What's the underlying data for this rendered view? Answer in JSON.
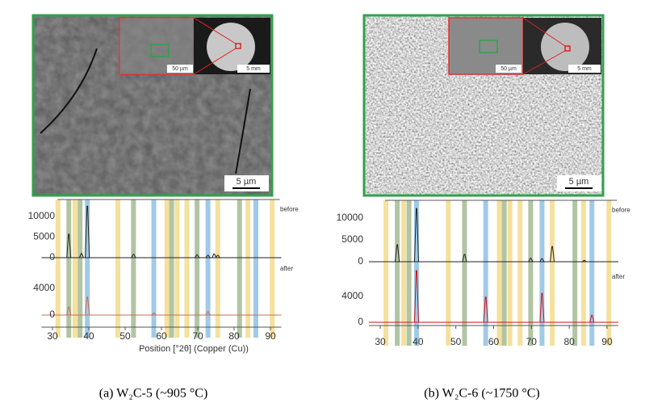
{
  "panels": [
    {
      "caption": "(a) W₂C-5 (~905 °C)",
      "sem": {
        "scale_bar": "5 µm",
        "inset_scale_bar": "50 µm",
        "sample_scale_bar": "5 mm"
      },
      "xrd": {
        "type": "line",
        "xlim": [
          27,
          93
        ],
        "xticks": [
          30,
          40,
          50,
          60,
          70,
          80,
          90
        ],
        "xlabel": "Position [°2θ] (Copper (Cu))",
        "reference_lines": [
          {
            "x": 31.5,
            "color": "#f3dc8c"
          },
          {
            "x": 34.5,
            "color": "#a3bb93"
          },
          {
            "x": 36.2,
            "color": "#f3dc8c"
          },
          {
            "x": 37.6,
            "color": "#a3bb93"
          },
          {
            "x": 39.6,
            "color": "#8fc1e3"
          },
          {
            "x": 48,
            "color": "#f3dc8c"
          },
          {
            "x": 52.3,
            "color": "#a3bb93"
          },
          {
            "x": 57.9,
            "color": "#8fc1e3"
          },
          {
            "x": 61.5,
            "color": "#f3dc8c"
          },
          {
            "x": 62.8,
            "color": "#a3bb93"
          },
          {
            "x": 64.3,
            "color": "#f3dc8c"
          },
          {
            "x": 67,
            "color": "#f3dc8c"
          },
          {
            "x": 69.8,
            "color": "#a3bb93"
          },
          {
            "x": 72.8,
            "color": "#8fc1e3"
          },
          {
            "x": 75.5,
            "color": "#f3dc8c"
          },
          {
            "x": 81.5,
            "color": "#a3bb93"
          },
          {
            "x": 83.8,
            "color": "#f3dc8c"
          },
          {
            "x": 86,
            "color": "#8fc1e3"
          },
          {
            "x": 90.5,
            "color": "#f3dc8c"
          }
        ],
        "series": [
          {
            "name": "before",
            "color": "#222222",
            "ylim": [
              0,
              14000
            ],
            "yticks": [
              0,
              5000,
              10000
            ],
            "x": [
              34.5,
              38,
              39.6,
              52.3,
              69.8,
              72.8,
              74.5,
              75.5
            ],
            "values": [
              5700,
              1000,
              12500,
              800,
              700,
              600,
              900,
              600
            ]
          },
          {
            "name": "after",
            "color": "#c0705a",
            "ylim": [
              0,
              4000
            ],
            "yticks": [
              0,
              4000
            ],
            "x": [
              34.5,
              39.6,
              57.9,
              72.8
            ],
            "values": [
              1200,
              2700,
              300,
              500
            ]
          }
        ]
      }
    },
    {
      "caption": "(b) W₂C-6 (~1750 °C)",
      "sem": {
        "scale_bar": "5 µm",
        "inset_scale_bar": "50 µm",
        "sample_scale_bar": "5 mm"
      },
      "xrd": {
        "type": "line",
        "xlim": [
          27,
          93
        ],
        "xticks": [
          30,
          40,
          50,
          60,
          70,
          80,
          90
        ],
        "reference_lines": [
          {
            "x": 31.5,
            "color": "#f3dc8c"
          },
          {
            "x": 34.5,
            "color": "#a3bb93"
          },
          {
            "x": 36.2,
            "color": "#f3dc8c"
          },
          {
            "x": 37.6,
            "color": "#a3bb93"
          },
          {
            "x": 39.6,
            "color": "#8fc1e3"
          },
          {
            "x": 48,
            "color": "#f3dc8c"
          },
          {
            "x": 52.3,
            "color": "#a3bb93"
          },
          {
            "x": 57.9,
            "color": "#8fc1e3"
          },
          {
            "x": 61.5,
            "color": "#f3dc8c"
          },
          {
            "x": 62.8,
            "color": "#a3bb93"
          },
          {
            "x": 64.3,
            "color": "#f3dc8c"
          },
          {
            "x": 67,
            "color": "#f3dc8c"
          },
          {
            "x": 69.8,
            "color": "#a3bb93"
          },
          {
            "x": 72.8,
            "color": "#8fc1e3"
          },
          {
            "x": 75.5,
            "color": "#f3dc8c"
          },
          {
            "x": 81.5,
            "color": "#a3bb93"
          },
          {
            "x": 83.8,
            "color": "#f3dc8c"
          },
          {
            "x": 86,
            "color": "#8fc1e3"
          },
          {
            "x": 90.5,
            "color": "#f3dc8c"
          }
        ],
        "series": [
          {
            "name": "before",
            "color": "#222222",
            "ylim": [
              0,
              14000
            ],
            "yticks": [
              0,
              5000,
              10000
            ],
            "x": [
              34.5,
              39.6,
              52.3,
              69.8,
              72.8,
              75.5,
              84
            ],
            "values": [
              3900,
              12200,
              1700,
              800,
              700,
              3500,
              300
            ]
          },
          {
            "name": "after",
            "color": "#cc1111",
            "ylim": [
              0,
              4000
            ],
            "yticks": [
              0,
              4000
            ],
            "x": [
              39.6,
              57.9,
              72.8,
              86
            ],
            "values": [
              8000,
              3900,
              4500,
              1100
            ]
          }
        ]
      }
    }
  ]
}
